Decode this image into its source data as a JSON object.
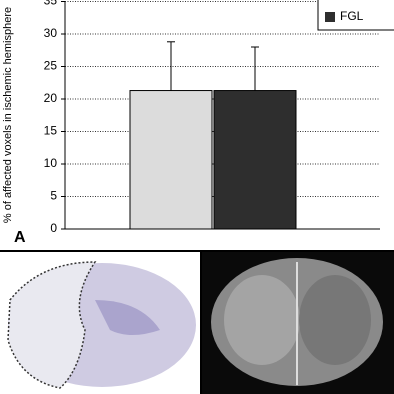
{
  "chart_data": {
    "type": "bar",
    "y_label": "% of affected voxels in ischemic hemisphere",
    "panel_label": "A",
    "series": [
      {
        "color": "#dcdcdc",
        "values": [
          21.3
        ],
        "errors": [
          7.5
        ]
      },
      {
        "name": "FGL",
        "color": "#2e2e2e",
        "values": [
          21.3
        ],
        "errors": [
          6.7
        ]
      }
    ],
    "ylim": [
      0,
      35
    ],
    "yticks": [
      0,
      5,
      10,
      15,
      20,
      25,
      30,
      35
    ],
    "grid": true
  }
}
